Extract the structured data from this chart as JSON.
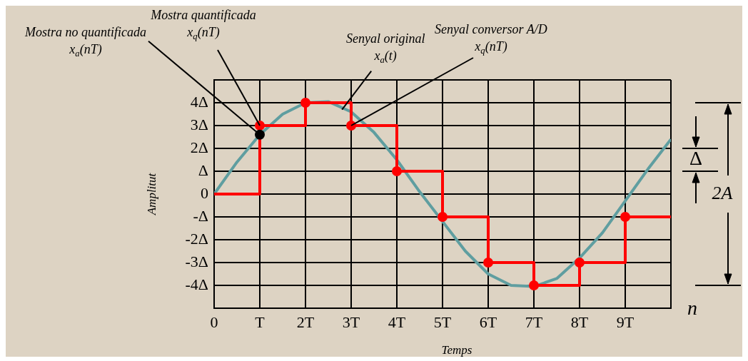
{
  "chart_data": {
    "type": "line",
    "xlabel": "Temps",
    "ylabel": "Amplitut",
    "xlim": [
      0,
      10
    ],
    "ylim": [
      -5,
      5
    ],
    "xticks": [
      {
        "value": 0,
        "label": "0"
      },
      {
        "value": 1,
        "label": "T"
      },
      {
        "value": 2,
        "label": "2T"
      },
      {
        "value": 3,
        "label": "3T"
      },
      {
        "value": 4,
        "label": "4T"
      },
      {
        "value": 5,
        "label": "5T"
      },
      {
        "value": 6,
        "label": "6T"
      },
      {
        "value": 7,
        "label": "7T"
      },
      {
        "value": 8,
        "label": "8T"
      },
      {
        "value": 9,
        "label": "9T"
      },
      {
        "value": 10,
        "label": null
      }
    ],
    "yticks": [
      {
        "value": -5,
        "label": null
      },
      {
        "value": -4,
        "label": "-4Δ"
      },
      {
        "value": -3,
        "label": "-3Δ"
      },
      {
        "value": -2,
        "label": "-2Δ"
      },
      {
        "value": -1,
        "label": "-Δ"
      },
      {
        "value": 0,
        "label": "0"
      },
      {
        "value": 1,
        "label": "Δ"
      },
      {
        "value": 2,
        "label": "2Δ"
      },
      {
        "value": 3,
        "label": "3Δ"
      },
      {
        "value": 4,
        "label": "4Δ"
      },
      {
        "value": 5,
        "label": null
      }
    ],
    "grid": true,
    "series": [
      {
        "type": "line",
        "color": "#5f9ea0",
        "marker": "none",
        "x": [
          0,
          0.5,
          1,
          1.5,
          2,
          2.5,
          3,
          3.5,
          4,
          4.5,
          5,
          5.5,
          6,
          6.5,
          7,
          7.5,
          8,
          8.5,
          9,
          9.5,
          10
        ],
        "values": [
          0,
          1.4,
          2.6,
          3.5,
          4,
          4.05,
          3.6,
          2.7,
          1.5,
          0.1,
          -1.2,
          -2.5,
          -3.5,
          -4,
          -4.05,
          -3.7,
          -2.8,
          -1.7,
          -0.3,
          1.1,
          2.4
        ]
      },
      {
        "type": "step",
        "color": "#ff0000",
        "marker": "none",
        "x": [
          0,
          1,
          2,
          3,
          4,
          5,
          6,
          7,
          8,
          9,
          10
        ],
        "values": [
          0,
          3,
          4,
          3,
          1,
          -1,
          -3,
          -4,
          -3,
          -1,
          -1
        ]
      },
      {
        "type": "scatter",
        "color": "#ff0000",
        "marker": "circle",
        "x": [
          1,
          2,
          3,
          4,
          5,
          6,
          7,
          8,
          9
        ],
        "values": [
          3,
          4,
          3,
          1,
          -1,
          -3,
          -4,
          -3,
          -1
        ]
      },
      {
        "type": "scatter",
        "color": "#000000",
        "marker": "circle",
        "x": [
          1
        ],
        "values": [
          2.6
        ]
      }
    ],
    "annotations": [
      {
        "text": "Mostra no quantificada\nx$_{a}$(nT)",
        "x": 1,
        "y": 2.6
      },
      {
        "text": "Mostra quantificada\nx$_{q}$(nT)",
        "x": 1,
        "y": 3
      },
      {
        "text": "Senyal original\nx$_{a}$(t)",
        "x": 2.8,
        "y": 3.7
      },
      {
        "text": "Senyal conversor A/D\nx$_{q}$(nT)",
        "x": 3,
        "y": 3
      },
      "n",
      "Δ",
      "2A"
    ]
  }
}
